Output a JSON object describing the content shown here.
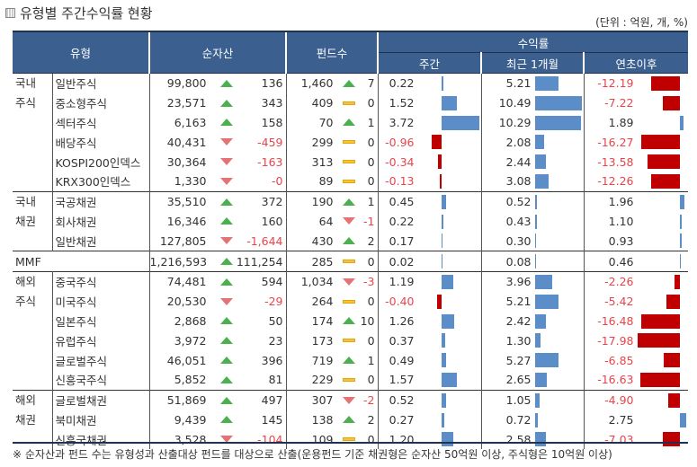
{
  "title": "유형별 주간수익률 현황",
  "unit": "(단위 : 억원, 개, %)",
  "headers": {
    "type": "유형",
    "net_assets": "순자산",
    "fund_count": "펀드수",
    "returns": "수익률",
    "weekly": "주간",
    "monthly": "최근 1개월",
    "ytd": "연초이후"
  },
  "colors": {
    "header": "#3b5f8e",
    "up": "#4caf50",
    "down": "#e57373",
    "flat": "#f5c242",
    "pos_bar": "#5b8dc9",
    "neg_bar": "#c00000"
  },
  "groups": [
    {
      "label1": "국내",
      "label2": "주식",
      "rows": [
        {
          "type": "일반주식",
          "na": "99,800",
          "na_dir": "up",
          "na_chg": "136",
          "fc": "1,460",
          "fc_dir": "up",
          "fc_chg": "7",
          "wk": 0.22,
          "mo": 5.21,
          "ytd": -12.19
        },
        {
          "type": "중소형주식",
          "na": "23,571",
          "na_dir": "up",
          "na_chg": "343",
          "fc": "409",
          "fc_dir": "flat",
          "fc_chg": "0",
          "wk": 1.52,
          "mo": 10.49,
          "ytd": -7.22
        },
        {
          "type": "섹터주식",
          "na": "6,163",
          "na_dir": "up",
          "na_chg": "158",
          "fc": "70",
          "fc_dir": "up",
          "fc_chg": "1",
          "wk": 3.72,
          "mo": 10.29,
          "ytd": 1.89
        },
        {
          "type": "배당주식",
          "na": "40,431",
          "na_dir": "down",
          "na_chg": "-459",
          "fc": "299",
          "fc_dir": "flat",
          "fc_chg": "0",
          "wk": -0.96,
          "mo": 2.08,
          "ytd": -16.27
        },
        {
          "type": "KOSPI200인덱스",
          "na": "30,364",
          "na_dir": "down",
          "na_chg": "-163",
          "fc": "313",
          "fc_dir": "flat",
          "fc_chg": "0",
          "wk": -0.34,
          "mo": 2.44,
          "ytd": -13.58
        },
        {
          "type": "KRX300인덱스",
          "na": "1,330",
          "na_dir": "down",
          "na_chg": "-0",
          "fc": "89",
          "fc_dir": "flat",
          "fc_chg": "0",
          "wk": -0.13,
          "mo": 3.08,
          "ytd": -12.26
        }
      ]
    },
    {
      "label1": "국내",
      "label2": "채권",
      "rows": [
        {
          "type": "국공채권",
          "na": "35,510",
          "na_dir": "up",
          "na_chg": "372",
          "fc": "190",
          "fc_dir": "up",
          "fc_chg": "1",
          "wk": 0.45,
          "mo": 0.52,
          "ytd": 1.96
        },
        {
          "type": "회사채권",
          "na": "16,346",
          "na_dir": "up",
          "na_chg": "160",
          "fc": "64",
          "fc_dir": "down",
          "fc_chg": "-1",
          "wk": 0.22,
          "mo": 0.43,
          "ytd": 1.1
        },
        {
          "type": "일반채권",
          "na": "127,805",
          "na_dir": "down",
          "na_chg": "-1,644",
          "fc": "430",
          "fc_dir": "up",
          "fc_chg": "2",
          "wk": 0.17,
          "mo": 0.3,
          "ytd": 0.93
        }
      ]
    },
    {
      "label1": "MMF",
      "label2": "",
      "single": true,
      "rows": [
        {
          "type": "",
          "na": "1,216,593",
          "na_dir": "up",
          "na_chg": "111,254",
          "fc": "285",
          "fc_dir": "flat",
          "fc_chg": "0",
          "wk": 0.02,
          "mo": 0.08,
          "ytd": 0.46
        }
      ]
    },
    {
      "label1": "해외",
      "label2": "주식",
      "rows": [
        {
          "type": "중국주식",
          "na": "74,481",
          "na_dir": "up",
          "na_chg": "594",
          "fc": "1,034",
          "fc_dir": "down",
          "fc_chg": "-3",
          "wk": 1.19,
          "mo": 3.96,
          "ytd": -2.26
        },
        {
          "type": "미국주식",
          "na": "20,530",
          "na_dir": "down",
          "na_chg": "-29",
          "fc": "264",
          "fc_dir": "flat",
          "fc_chg": "0",
          "wk": -0.4,
          "mo": 5.21,
          "ytd": -5.42
        },
        {
          "type": "일본주식",
          "na": "2,868",
          "na_dir": "up",
          "na_chg": "50",
          "fc": "174",
          "fc_dir": "up",
          "fc_chg": "10",
          "wk": 1.26,
          "mo": 2.42,
          "ytd": -16.48
        },
        {
          "type": "유럽주식",
          "na": "3,972",
          "na_dir": "up",
          "na_chg": "23",
          "fc": "173",
          "fc_dir": "flat",
          "fc_chg": "0",
          "wk": 0.37,
          "mo": 1.3,
          "ytd": -17.98
        },
        {
          "type": "글로벌주식",
          "na": "46,051",
          "na_dir": "up",
          "na_chg": "396",
          "fc": "719",
          "fc_dir": "up",
          "fc_chg": "1",
          "wk": 0.49,
          "mo": 5.27,
          "ytd": -6.85
        },
        {
          "type": "신흥국주식",
          "na": "5,852",
          "na_dir": "up",
          "na_chg": "81",
          "fc": "229",
          "fc_dir": "flat",
          "fc_chg": "0",
          "wk": 1.57,
          "mo": 2.65,
          "ytd": -16.63
        }
      ]
    },
    {
      "label1": "해외",
      "label2": "채권",
      "rows": [
        {
          "type": "글로벌채권",
          "na": "51,869",
          "na_dir": "up",
          "na_chg": "497",
          "fc": "307",
          "fc_dir": "down",
          "fc_chg": "-2",
          "wk": 0.52,
          "mo": 1.05,
          "ytd": -4.9
        },
        {
          "type": "북미채권",
          "na": "9,439",
          "na_dir": "up",
          "na_chg": "145",
          "fc": "138",
          "fc_dir": "up",
          "fc_chg": "2",
          "wk": 0.27,
          "mo": 0.72,
          "ytd": 2.75
        },
        {
          "type": "신흥국채권",
          "na": "3,528",
          "na_dir": "down",
          "na_chg": "-104",
          "fc": "109",
          "fc_dir": "flat",
          "fc_chg": "0",
          "wk": 1.2,
          "mo": 2.58,
          "ytd": -7.03
        }
      ]
    }
  ],
  "footnote": "※ 순자산과 펀드 수는 유형성과 산출대상 펀드를 대상으로 산출(운용펀드 기준 채권형은 순자산 50억원 이상, 주식형은 10억원 이상)"
}
